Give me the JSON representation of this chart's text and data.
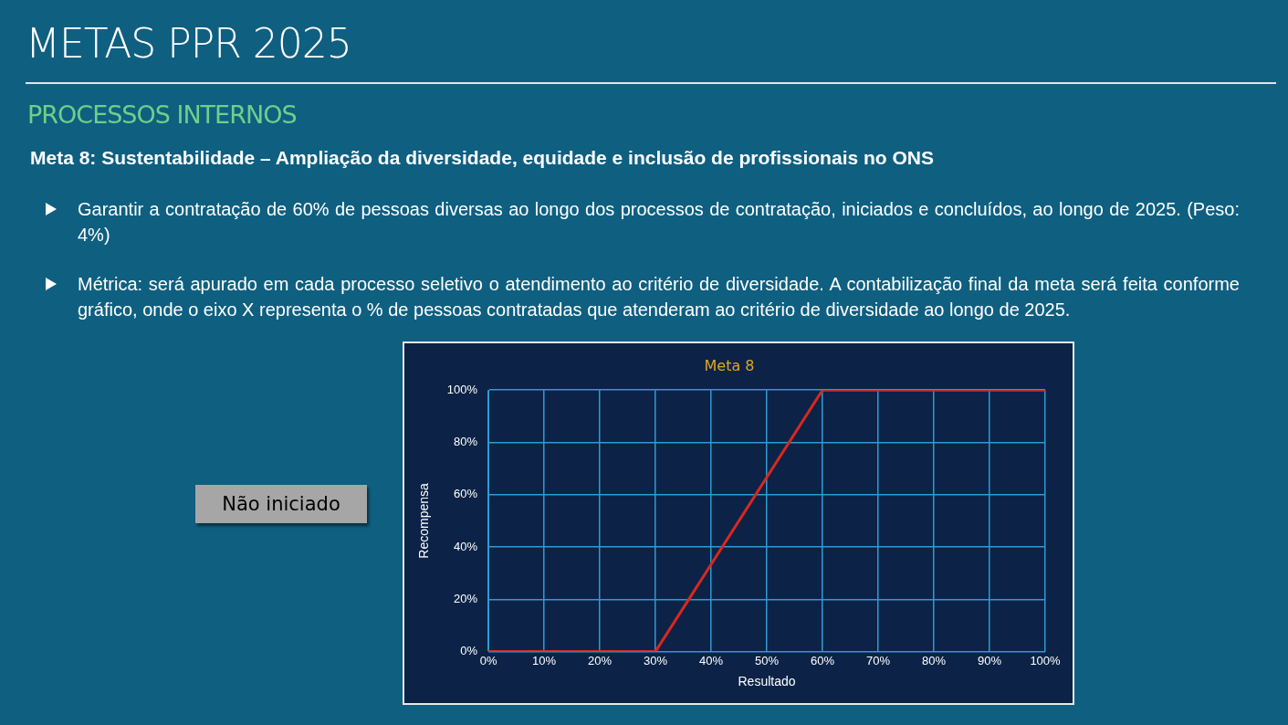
{
  "chart_data": {
    "type": "line",
    "title": "Meta 8",
    "xlabel": "Resultado",
    "ylabel": "Recompensa",
    "x": [
      0,
      30,
      60,
      100
    ],
    "series": [
      {
        "color": "#d9281e",
        "values": [
          0,
          0,
          100,
          100
        ]
      }
    ],
    "xlim": [
      0,
      100
    ],
    "ylim": [
      0,
      100
    ],
    "xticks": [
      {
        "value": 0,
        "label": "0%"
      },
      {
        "value": 10,
        "label": "10%"
      },
      {
        "value": 20,
        "label": "20%"
      },
      {
        "value": 30,
        "label": "30%"
      },
      {
        "value": 40,
        "label": "40%"
      },
      {
        "value": 50,
        "label": "50%"
      },
      {
        "value": 60,
        "label": "60%"
      },
      {
        "value": 70,
        "label": "70%"
      },
      {
        "value": 80,
        "label": "80%"
      },
      {
        "value": 90,
        "label": "90%"
      },
      {
        "value": 100,
        "label": "100%"
      }
    ],
    "yticks": [
      {
        "value": 0,
        "label": "0%"
      },
      {
        "value": 20,
        "label": "20%"
      },
      {
        "value": 40,
        "label": "40%"
      },
      {
        "value": 60,
        "label": "60%"
      },
      {
        "value": 80,
        "label": "80%"
      },
      {
        "value": 100,
        "label": "100%"
      }
    ],
    "grid": true,
    "legend": false,
    "marker": "none",
    "line_style": "solid",
    "annotations": [
      "METAS PPR 2025",
      "PROCESSOS INTERNOS",
      "Meta 8: Sustentabilidade – Ampliação da diversidade, equidade e inclusão de profissionais no ONS",
      "Garantir a contratação de 60% de pessoas diversas ao longo dos processos de contratação, iniciados e concluídos, ao longo de 2025. (Peso: 4%)",
      "Métrica: será apurado em cada processo seletivo o atendimento ao critério de diversidade. A contabilização final da meta será feita conforme gráfico, onde o eixo X representa o % de pessoas contratadas que atenderam ao critério de diversidade ao longo de 2025.",
      "Não iniciado"
    ]
  }
}
